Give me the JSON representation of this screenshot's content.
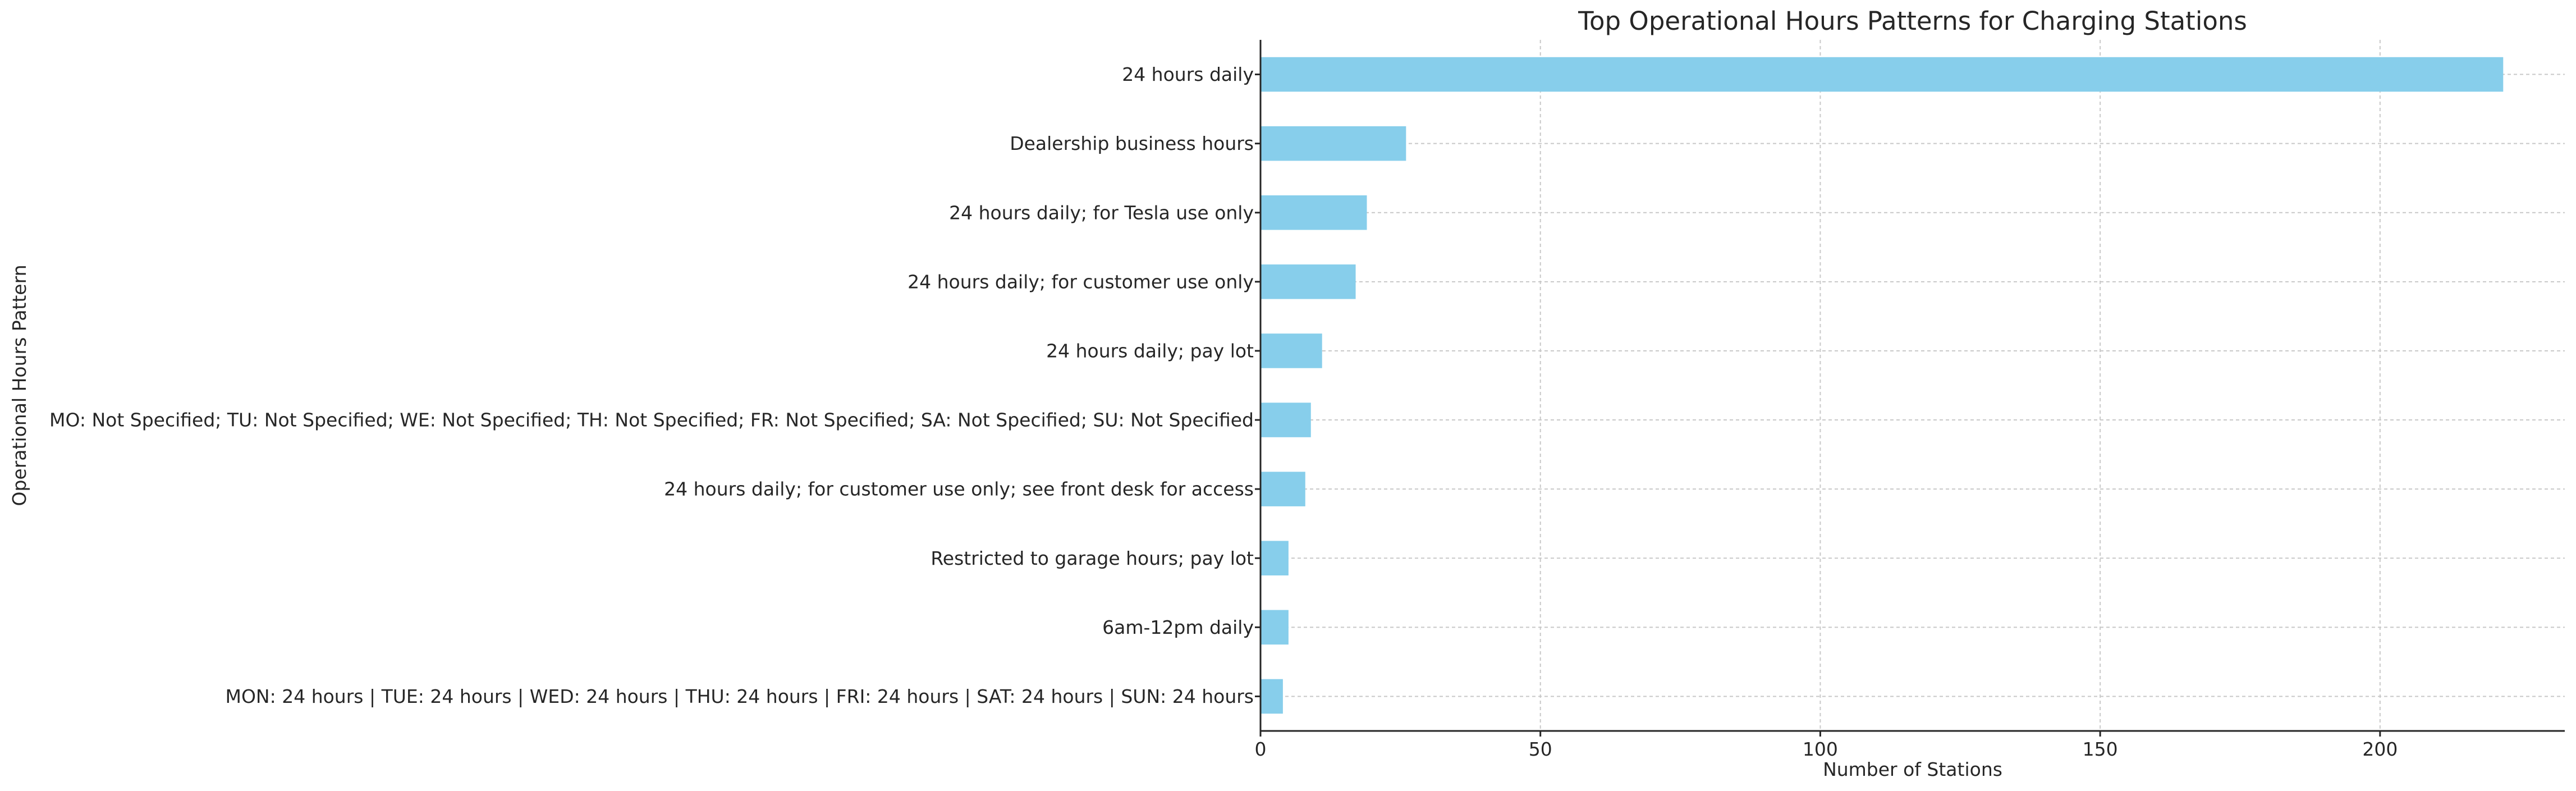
{
  "chart_data": {
    "type": "bar",
    "orientation": "horizontal",
    "title": "Top Operational Hours Patterns for Charging Stations",
    "xlabel": "Number of Stations",
    "ylabel": "Operational Hours Pattern",
    "categories": [
      "24 hours daily",
      "Dealership business hours",
      "24 hours daily; for Tesla use only",
      "24 hours daily; for customer use only",
      "24 hours daily; pay lot",
      "MO: Not Specified; TU: Not Specified; WE: Not Specified; TH: Not Specified; FR: Not Specified; SA: Not Specified; SU: Not Specified",
      "24 hours daily; for customer use only; see front desk for access",
      "Restricted to garage hours; pay lot",
      "6am-12pm daily",
      "MON: 24 hours | TUE: 24 hours | WED: 24 hours | THU: 24 hours | FRI: 24 hours | SAT: 24 hours | SUN: 24 hours"
    ],
    "values": [
      222,
      26,
      19,
      17,
      11,
      9,
      8,
      5,
      5,
      4
    ],
    "xlim": [
      0,
      233
    ],
    "xticks": [
      0,
      50,
      100,
      150,
      200
    ],
    "xtick_labels": [
      "0",
      "50",
      "100",
      "150",
      "200"
    ],
    "grid": true,
    "bar_color": "#87CEEB"
  }
}
